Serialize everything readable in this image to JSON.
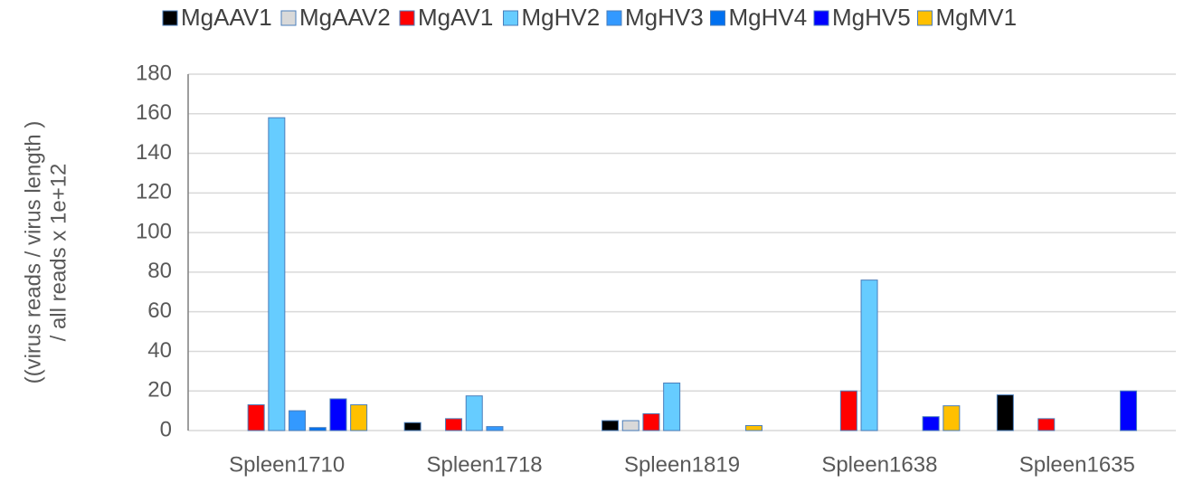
{
  "chart_data": {
    "type": "bar",
    "ylabel": [
      "((virus reads / virus length )",
      "/ all reads x 1e+12"
    ],
    "categories": [
      "Spleen1710",
      "Spleen1718",
      "Spleen1819",
      "Spleen1638",
      "Spleen1635"
    ],
    "series": [
      {
        "name": "MgAAV1",
        "color": "#000000",
        "values": [
          0,
          4,
          5,
          0,
          18
        ]
      },
      {
        "name": "MgAAV2",
        "color": "#d9d9d9",
        "values": [
          0,
          0,
          5,
          0,
          0
        ]
      },
      {
        "name": "MgAV1",
        "color": "#ff0000",
        "values": [
          13,
          6,
          8.5,
          20,
          6
        ]
      },
      {
        "name": "MgHV2",
        "color": "#66ccff",
        "values": [
          158,
          17.5,
          24,
          76,
          0
        ]
      },
      {
        "name": "MgHV3",
        "color": "#3399ff",
        "values": [
          10,
          2,
          0,
          0,
          0
        ]
      },
      {
        "name": "MgHV4",
        "color": "#0070f0",
        "values": [
          1.5,
          0,
          0,
          0,
          0
        ]
      },
      {
        "name": "MgHV5",
        "color": "#0000ff",
        "values": [
          16,
          0,
          0,
          7,
          20
        ]
      },
      {
        "name": "MgMV1",
        "color": "#ffc000",
        "values": [
          13,
          0,
          2.5,
          12.5,
          0
        ]
      }
    ],
    "ylim": [
      0,
      180
    ],
    "yticks": [
      0,
      20,
      40,
      60,
      80,
      100,
      120,
      140,
      160,
      180
    ],
    "grid": true,
    "legend": "top"
  }
}
